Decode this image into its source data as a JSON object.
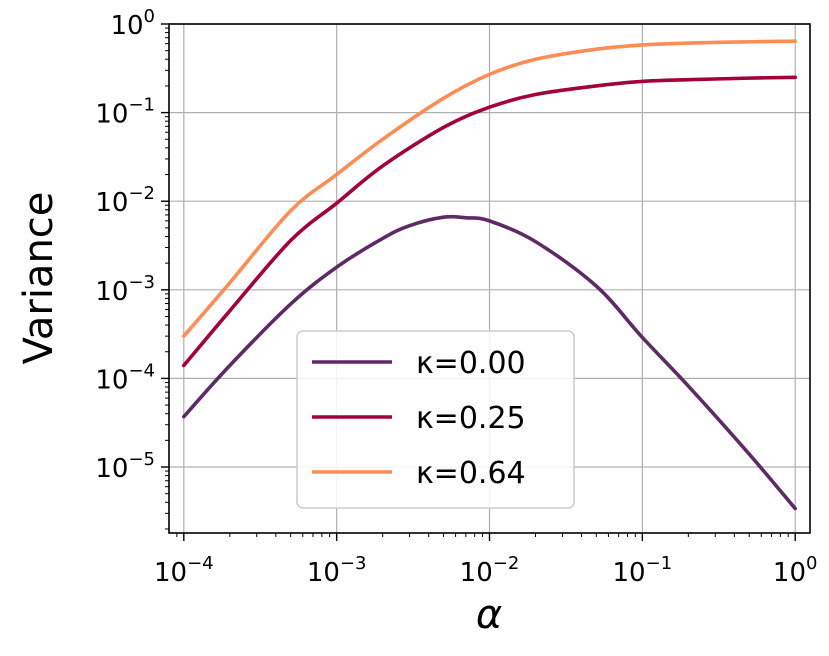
{
  "chart_data": {
    "type": "line",
    "xscale": "log",
    "yscale": "log",
    "xlabel": "α",
    "ylabel": "Variance",
    "xlim": [
      8e-05,
      1.25
    ],
    "ylim": [
      1.8e-06,
      1.0
    ],
    "grid": true,
    "legend_position": "lower-center",
    "x_ticks": [
      {
        "base": "10",
        "exp": "−4",
        "value": 0.0001
      },
      {
        "base": "10",
        "exp": "−3",
        "value": 0.001
      },
      {
        "base": "10",
        "exp": "−2",
        "value": 0.01
      },
      {
        "base": "10",
        "exp": "−1",
        "value": 0.1
      },
      {
        "base": "10",
        "exp": "0",
        "value": 1
      }
    ],
    "y_ticks": [
      {
        "base": "10",
        "exp": "0",
        "value": 1
      },
      {
        "base": "10",
        "exp": "−1",
        "value": 0.1
      },
      {
        "base": "10",
        "exp": "−2",
        "value": 0.01
      },
      {
        "base": "10",
        "exp": "−3",
        "value": 0.001
      },
      {
        "base": "10",
        "exp": "−4",
        "value": 0.0001
      },
      {
        "base": "10",
        "exp": "−5",
        "value": 1e-05
      }
    ],
    "series": [
      {
        "name": "κ=0.00",
        "color": "#5e2a66",
        "x": [
          0.0001,
          0.0002,
          0.0005,
          0.001,
          0.002,
          0.003,
          0.005,
          0.007,
          0.01,
          0.02,
          0.05,
          0.1,
          0.2,
          0.5,
          1
        ],
        "y": [
          3.7e-05,
          0.00014,
          0.00069,
          0.0018,
          0.0038,
          0.0053,
          0.0066,
          0.0065,
          0.006,
          0.0035,
          0.0011,
          0.00029,
          8.2e-05,
          1.4e-05,
          3.4e-06
        ]
      },
      {
        "name": "κ=0.25",
        "color": "#a3003e",
        "x": [
          0.0001,
          0.0002,
          0.0005,
          0.001,
          0.002,
          0.005,
          0.01,
          0.02,
          0.05,
          0.1,
          0.2,
          0.5,
          1
        ],
        "y": [
          0.00014,
          0.00058,
          0.0036,
          0.0095,
          0.025,
          0.068,
          0.115,
          0.16,
          0.2,
          0.225,
          0.235,
          0.245,
          0.25
        ]
      },
      {
        "name": "κ=0.64",
        "color": "#ff8c55",
        "x": [
          0.0001,
          0.0002,
          0.0005,
          0.001,
          0.002,
          0.005,
          0.01,
          0.02,
          0.05,
          0.1,
          0.2,
          0.5,
          1
        ],
        "y": [
          0.0003,
          0.0012,
          0.0078,
          0.02,
          0.05,
          0.145,
          0.27,
          0.4,
          0.52,
          0.58,
          0.61,
          0.63,
          0.64
        ]
      }
    ]
  }
}
